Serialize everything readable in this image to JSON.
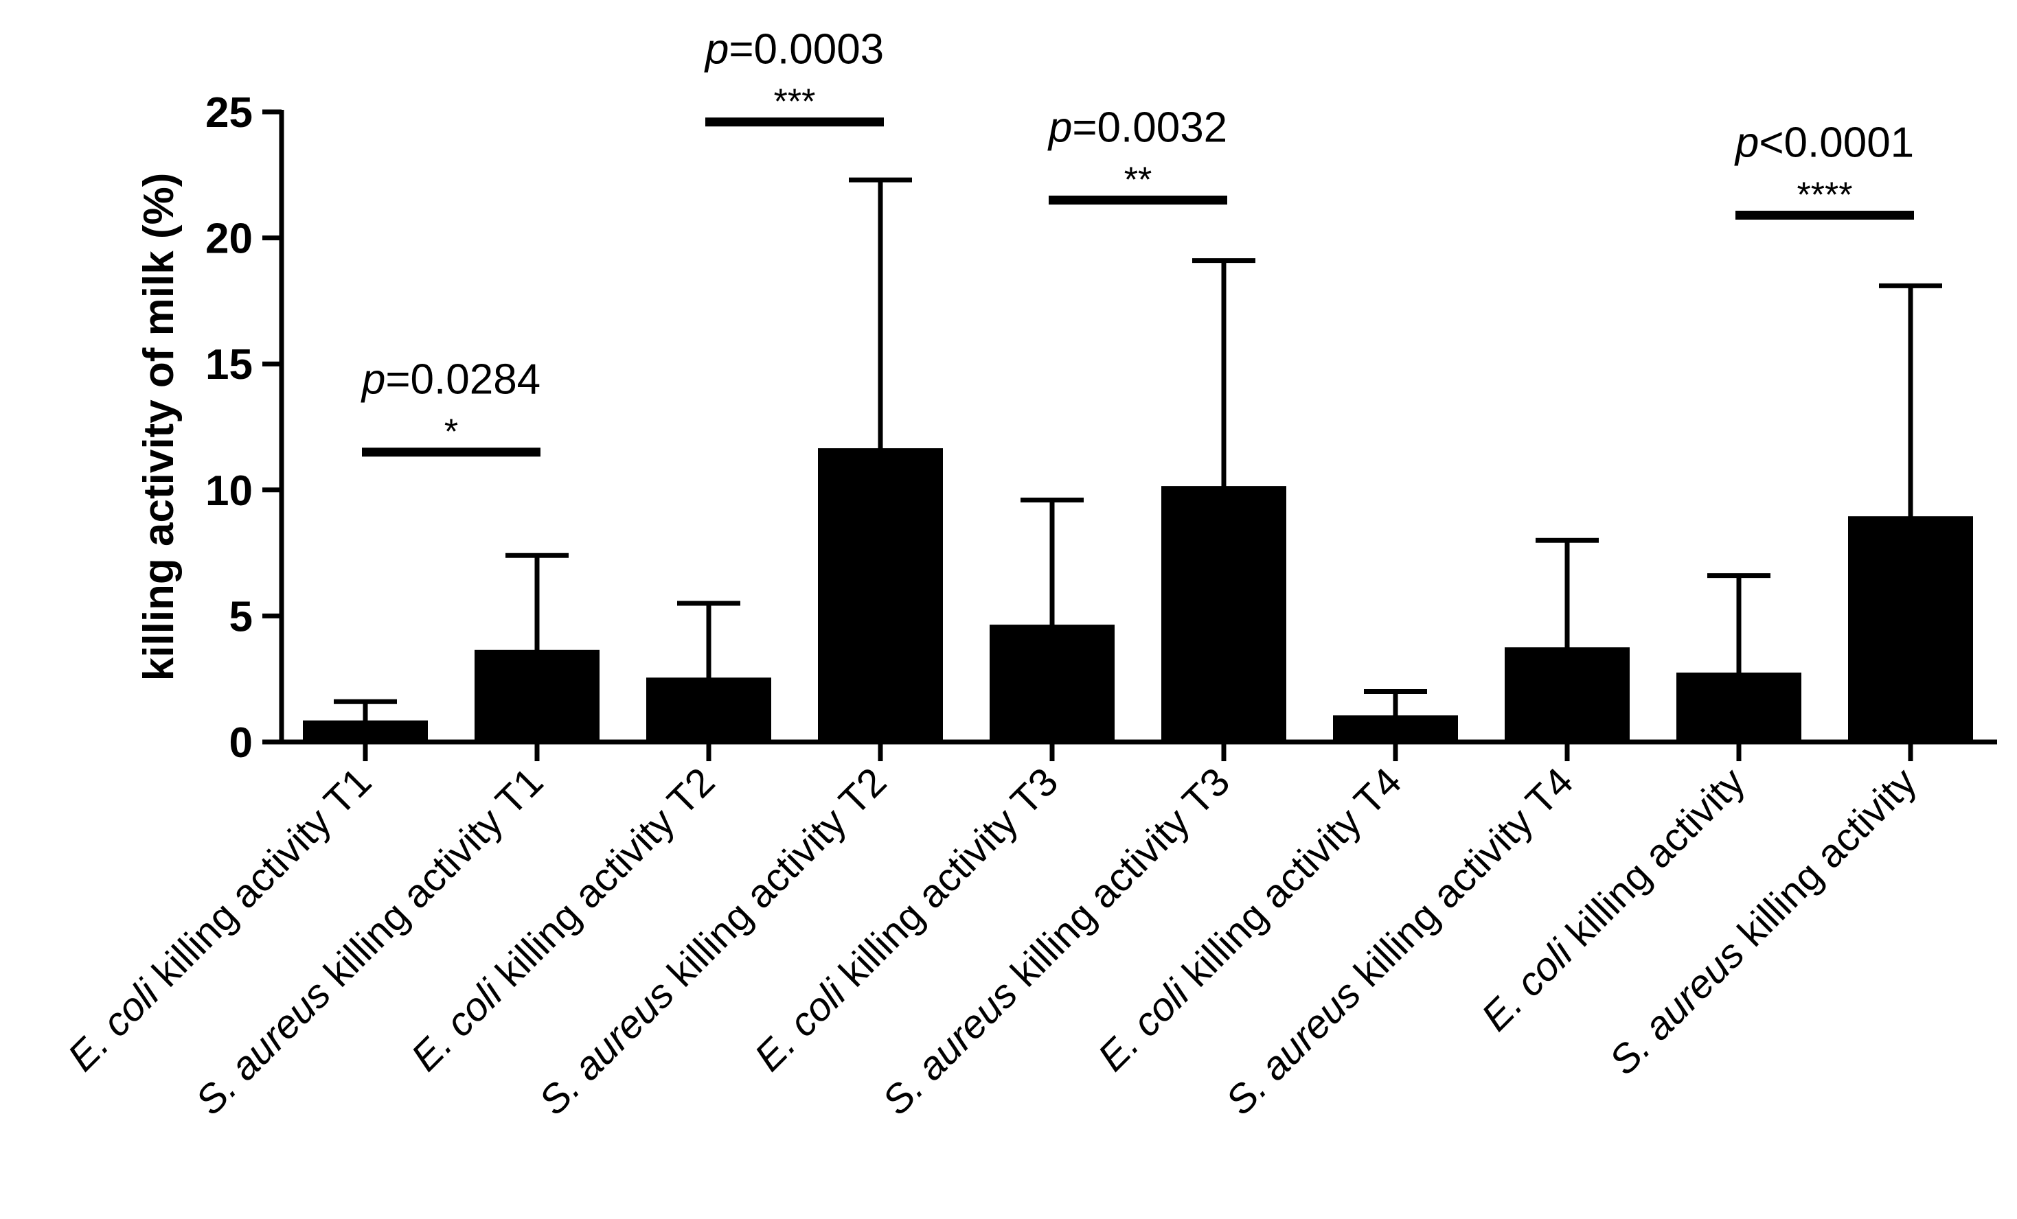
{
  "chart_data": {
    "type": "bar",
    "title": "",
    "xlabel": "",
    "ylabel": "killing activity of milk (%)",
    "ylim": [
      0,
      25
    ],
    "yticks": [
      0,
      5,
      10,
      15,
      20,
      25
    ],
    "grid": false,
    "categories": [
      {
        "italic": "E. coli",
        "rest": " killing activity T1"
      },
      {
        "italic": "S. aureus",
        "rest": " killing activity T1",
        "prefix": ""
      },
      {
        "italic": "E. coli",
        "rest": " killing activity T2"
      },
      {
        "italic": "S. aureus",
        "rest": " killing activity T2"
      },
      {
        "italic": "E. coli",
        "rest": " killing activity T3"
      },
      {
        "italic": "S. aureus",
        "rest": " killing activity T3"
      },
      {
        "italic": "E. coli",
        "rest": " killing activity T4"
      },
      {
        "italic": "S. aureus",
        "rest": " killing activity T4"
      },
      {
        "italic": "E. coli",
        "rest": " killing activity"
      },
      {
        "italic": "S. aureus",
        "rest": " killing activity"
      }
    ],
    "values": [
      0.8,
      3.6,
      2.5,
      11.6,
      4.6,
      10.1,
      1.0,
      3.7,
      2.7,
      8.9
    ],
    "error_upper": [
      1.6,
      7.4,
      5.5,
      22.3,
      9.6,
      19.1,
      2.0,
      8.0,
      6.6,
      18.1
    ],
    "significance": [
      {
        "from": 0,
        "to": 1,
        "y": 11.5,
        "p_italic": "p",
        "p_rest": "=0.0284",
        "stars": "*"
      },
      {
        "from": 2,
        "to": 3,
        "y": 24.6,
        "p_italic": "p",
        "p_rest": "=0.0003",
        "stars": "***"
      },
      {
        "from": 4,
        "to": 5,
        "y": 21.5,
        "p_italic": "p",
        "p_rest": "=0.0032",
        "stars": "**"
      },
      {
        "from": 8,
        "to": 9,
        "y": 20.9,
        "p_italic": "p",
        "p_rest": "<0.0001",
        "stars": "****"
      }
    ]
  }
}
